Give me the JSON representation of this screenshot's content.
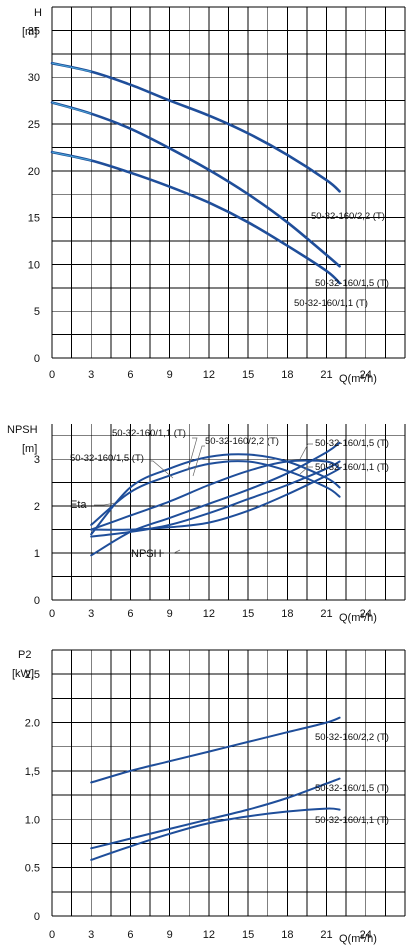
{
  "chart_data": [
    {
      "type": "line",
      "ylabel": "H",
      "yunit": "[m]",
      "xlabel": "Q(m³/h)",
      "xlim": [
        0,
        27
      ],
      "ylim": [
        0,
        37.5
      ],
      "xticks": [
        "0",
        "3",
        "6",
        "9",
        "12",
        "15",
        "18",
        "21",
        "24"
      ],
      "yticks": [
        "0",
        "5",
        "10",
        "15",
        "20",
        "25",
        "30",
        "35"
      ],
      "grid": true,
      "series": [
        {
          "name": "50-32-160/2,2 (T)",
          "x": [
            0,
            3,
            6,
            9,
            12,
            15,
            18,
            21,
            22
          ],
          "y": [
            31.5,
            30.6,
            29.2,
            27.5,
            25.9,
            24.0,
            21.7,
            19.0,
            17.8
          ]
        },
        {
          "name": "50-32-160/1,5 (T)",
          "x": [
            0,
            3,
            6,
            9,
            12,
            15,
            18,
            21,
            22
          ],
          "y": [
            27.3,
            26.1,
            24.5,
            22.4,
            20.1,
            17.5,
            14.5,
            11.0,
            9.8
          ]
        },
        {
          "name": "50-32-160/1,1 (T)",
          "x": [
            0,
            3,
            6,
            9,
            12,
            15,
            18,
            21,
            22
          ],
          "y": [
            22.0,
            21.1,
            19.8,
            18.3,
            16.6,
            14.5,
            12.0,
            9.3,
            8.0
          ]
        }
      ]
    },
    {
      "type": "line",
      "ylabel": "NPSH",
      "yunit": "[m]",
      "xlabel": "Q(m³/h)",
      "xlim": [
        0,
        27
      ],
      "ylim": [
        0,
        3.75
      ],
      "xticks": [
        "0",
        "3",
        "6",
        "9",
        "12",
        "15",
        "18",
        "21",
        "24"
      ],
      "yticks": [
        "0",
        "1",
        "2",
        "3"
      ],
      "grid": true,
      "annotations": [
        "Eta",
        "NPSH"
      ],
      "series": [
        {
          "name": "50-32-160/1,5 (T)",
          "x": [
            3,
            6,
            9,
            12,
            15,
            18,
            21,
            22
          ],
          "y": [
            1.4,
            2.4,
            2.8,
            3.05,
            3.1,
            2.95,
            2.6,
            2.4
          ]
        },
        {
          "name": "50-32-160/1,1 (T)",
          "x": [
            3,
            6,
            9,
            12,
            15,
            18,
            21,
            22
          ],
          "y": [
            1.6,
            2.3,
            2.65,
            2.9,
            2.95,
            2.75,
            2.4,
            2.2
          ]
        },
        {
          "name": "50-32-160/2,2 (T)",
          "x": [
            3,
            6,
            9,
            12,
            15,
            18,
            21,
            22
          ],
          "y": [
            1.5,
            1.8,
            2.1,
            2.45,
            2.75,
            2.95,
            2.95,
            2.8
          ]
        },
        {
          "name": "50-32-160/1,5 (T)",
          "x": [
            3,
            6,
            9,
            12,
            15,
            18,
            21,
            22
          ],
          "y": [
            0.95,
            1.45,
            1.75,
            2.05,
            2.35,
            2.7,
            3.15,
            3.35
          ]
        },
        {
          "name": "50-32-160/1,1 (T)",
          "x": [
            3,
            6,
            9,
            12,
            15,
            18,
            21,
            22
          ],
          "y": [
            1.35,
            1.45,
            1.6,
            1.85,
            2.15,
            2.45,
            2.8,
            2.95
          ]
        },
        {
          "name": "50-32-160/2,2 (T)",
          "x": [
            3,
            6,
            9,
            12,
            15,
            18,
            21,
            22
          ],
          "y": [
            1.5,
            1.5,
            1.55,
            1.65,
            1.9,
            2.25,
            2.65,
            2.8
          ]
        }
      ]
    },
    {
      "type": "line",
      "ylabel": "P2",
      "yunit": "[kW]",
      "xlabel": "Q(m³/h)",
      "xlim": [
        0,
        27
      ],
      "ylim": [
        0,
        2.75
      ],
      "xticks": [
        "0",
        "3",
        "6",
        "9",
        "12",
        "15",
        "18",
        "21",
        "24"
      ],
      "yticks": [
        "0",
        "0.5",
        "1.0",
        "1,5",
        "2.0",
        "2,5"
      ],
      "grid": true,
      "series": [
        {
          "name": "50-32-160/2,2 (T)",
          "x": [
            3,
            6,
            9,
            12,
            15,
            18,
            21,
            22
          ],
          "y": [
            1.38,
            1.5,
            1.6,
            1.7,
            1.8,
            1.9,
            2.0,
            2.05
          ]
        },
        {
          "name": "50-32-160/1,5 (T)",
          "x": [
            3,
            6,
            9,
            12,
            15,
            18,
            21,
            22
          ],
          "y": [
            0.7,
            0.8,
            0.9,
            1.0,
            1.1,
            1.22,
            1.37,
            1.42
          ]
        },
        {
          "name": "50-32-160/1,1 (T)",
          "x": [
            3,
            6,
            9,
            12,
            15,
            18,
            21,
            22
          ],
          "y": [
            0.58,
            0.72,
            0.85,
            0.96,
            1.03,
            1.08,
            1.11,
            1.1
          ]
        }
      ]
    }
  ]
}
